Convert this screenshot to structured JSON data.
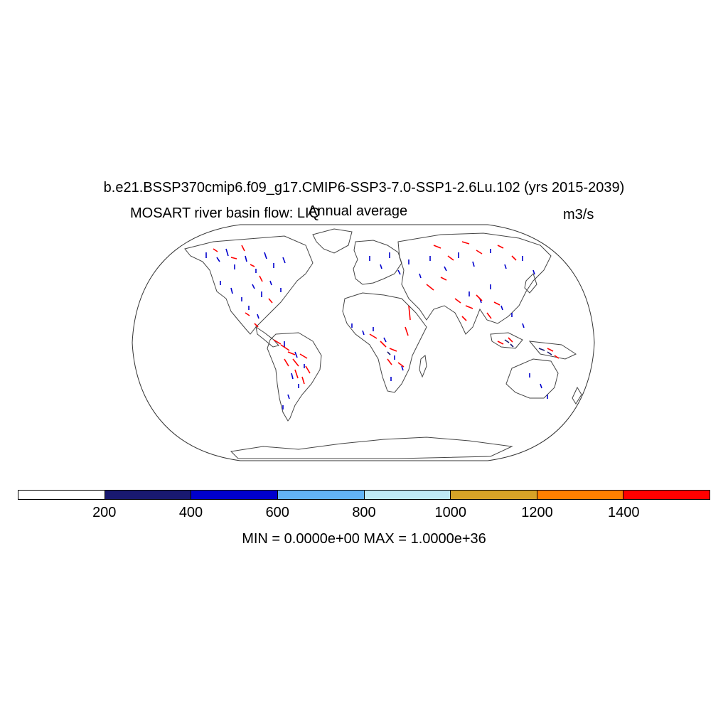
{
  "title": "b.e21.BSSP370cmip6.f09_g17.CMIP6-SSP3-7.0-SSP1-2.6Lu.102 (yrs 2015-2039)",
  "subtitle_left": "MOSART river basin flow: LIQ",
  "subtitle_center": "Annual average",
  "subtitle_right": "m3/s",
  "colorbar": {
    "colors": [
      "#ffffff",
      "#191970",
      "#0000cd",
      "#63b3f5",
      "#bfeaf5",
      "#d7a327",
      "#ff8000",
      "#ff0000"
    ],
    "tick_labels": [
      "200",
      "400",
      "600",
      "800",
      "1000",
      "1200",
      "1400"
    ]
  },
  "stats": "MIN = 0.0000e+00 MAX = 1.0000e+36",
  "map": {
    "projection": "Robinson",
    "field": "river basin flow (LIQ)",
    "units": "m3/s"
  }
}
